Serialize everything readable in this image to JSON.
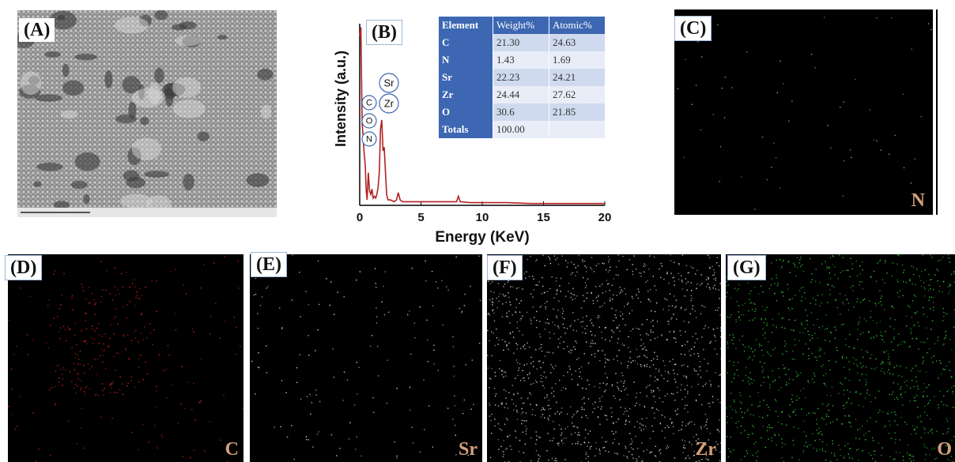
{
  "panels": {
    "a": {
      "label": "(A)"
    },
    "b": {
      "label": "(B)"
    },
    "c": {
      "label": "(C)",
      "element": "N"
    },
    "d": {
      "label": "(D)",
      "element": "C"
    },
    "e": {
      "label": "(E)",
      "element": "Sr"
    },
    "f": {
      "label": "(F)",
      "element": "Zr"
    },
    "g": {
      "label": "(G)",
      "element": "O"
    }
  },
  "chart_data": {
    "type": "line",
    "xlabel": "Energy (KeV)",
    "ylabel": "Intensity (a.u.)",
    "xlim": [
      0,
      20
    ],
    "xticks": [
      "0",
      "5",
      "10",
      "15",
      "20"
    ],
    "ylim": [
      0,
      1
    ],
    "series_color": "#b22222",
    "x": [
      0,
      0.1,
      0.2,
      0.28,
      0.35,
      0.45,
      0.52,
      0.6,
      0.7,
      0.8,
      0.9,
      1.0,
      1.1,
      1.2,
      1.3,
      1.4,
      1.5,
      1.6,
      1.7,
      1.8,
      1.9,
      2.0,
      2.1,
      2.2,
      2.3,
      2.5,
      2.8,
      3.0,
      3.15,
      3.3,
      3.5,
      4.0,
      5.0,
      6.0,
      7.0,
      7.9,
      8.05,
      8.2,
      9.0,
      10.0,
      12.0,
      14.0,
      16.0,
      18.0,
      20.0
    ],
    "y": [
      0.93,
      0.98,
      0.45,
      0.38,
      0.3,
      0.22,
      0.09,
      0.03,
      0.18,
      0.08,
      0.06,
      0.09,
      0.04,
      0.05,
      0.04,
      0.06,
      0.1,
      0.18,
      0.42,
      0.47,
      0.3,
      0.32,
      0.18,
      0.06,
      0.03,
      0.03,
      0.02,
      0.03,
      0.07,
      0.03,
      0.02,
      0.02,
      0.02,
      0.02,
      0.02,
      0.02,
      0.05,
      0.02,
      0.015,
      0.015,
      0.015,
      0.01,
      0.01,
      0.01,
      0.01
    ],
    "peak_labels": [
      "C",
      "O",
      "N",
      "Sr",
      "Zr"
    ],
    "table": {
      "headers": [
        "Element",
        "Weight%",
        "Atomic%"
      ],
      "rows": [
        [
          "C",
          "21.30",
          "24.63"
        ],
        [
          "N",
          "1.43",
          "1.69"
        ],
        [
          "Sr",
          "22.23",
          "24.21"
        ],
        [
          "Zr",
          "24.44",
          "27.62"
        ],
        [
          "O",
          "30.6",
          "21.85"
        ],
        [
          "Totals",
          "100.00",
          ""
        ]
      ]
    }
  },
  "maps": {
    "c": {
      "color": "#6fcf6f",
      "dots": 60
    },
    "d": {
      "color": "#e02020",
      "dots": 320
    },
    "e": {
      "color": "#d8d8d8",
      "dots": 170
    },
    "f": {
      "color": "#d8d8d8",
      "dots": 1300
    },
    "g": {
      "color": "#33cc33",
      "dots": 1100
    }
  }
}
